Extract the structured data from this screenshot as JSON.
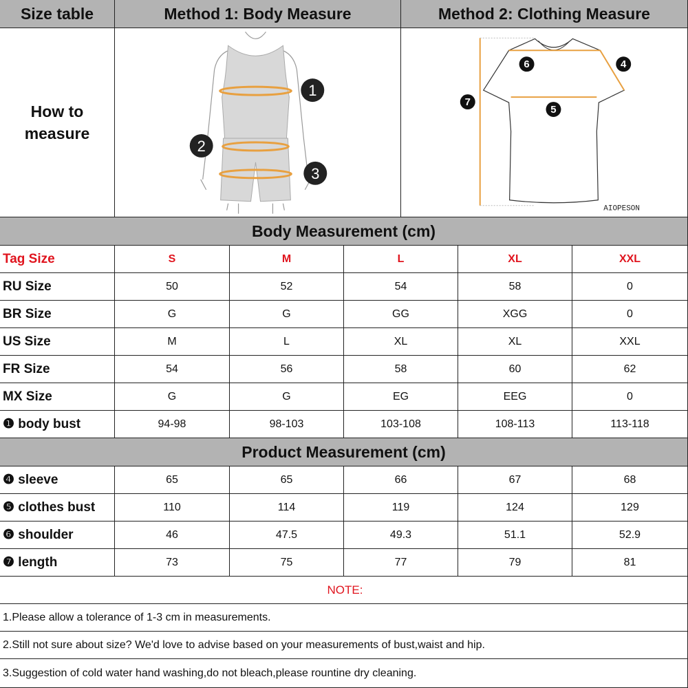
{
  "header": {
    "size_table": "Size table",
    "method1": "Method 1: Body  Measure",
    "method2": "Method 2: Clothing Measure"
  },
  "how_to": "How to measure",
  "body_markers": [
    "1",
    "2",
    "3"
  ],
  "shirt_markers": {
    "shoulder": "6",
    "sleeve": "4",
    "length": "7",
    "bust": "5"
  },
  "brand": "AIOPESON",
  "colors": {
    "header_bg": "#b3b3b3",
    "tag_red": "#e0141e",
    "measure_orange": "#e8a040"
  },
  "body_section": "Body Measurement (cm)",
  "product_section": "Product Measurement (cm)",
  "body_rows": [
    {
      "label": "Tag Size",
      "values": [
        "S",
        "M",
        "L",
        "XL",
        "XXL"
      ],
      "red": true
    },
    {
      "label": "RU Size",
      "values": [
        "50",
        "52",
        "54",
        "58",
        "0"
      ]
    },
    {
      "label": "BR Size",
      "values": [
        "G",
        "G",
        "GG",
        "XGG",
        "0"
      ]
    },
    {
      "label": "US Size",
      "values": [
        "M",
        "L",
        "XL",
        "XL",
        "XXL"
      ]
    },
    {
      "label": "FR Size",
      "values": [
        "54",
        "56",
        "58",
        "60",
        "62"
      ]
    },
    {
      "label": "MX Size",
      "values": [
        "G",
        "G",
        "EG",
        "EEG",
        "0"
      ]
    },
    {
      "label": "❶ body bust",
      "values": [
        "94-98",
        "98-103",
        "103-108",
        "108-113",
        "113-118"
      ]
    }
  ],
  "product_rows": [
    {
      "label": "❹ sleeve",
      "values": [
        "65",
        "65",
        "66",
        "67",
        "68"
      ]
    },
    {
      "label": "❺ clothes bust",
      "values": [
        "110",
        "114",
        "119",
        "124",
        "129"
      ]
    },
    {
      "label": "❻ shoulder",
      "values": [
        "46",
        "47.5",
        "49.3",
        "51.1",
        "52.9"
      ]
    },
    {
      "label": "❼ length",
      "values": [
        "73",
        "75",
        "77",
        "79",
        "81"
      ]
    }
  ],
  "note_title": "NOTE:",
  "notes": [
    "1.Please allow a tolerance of 1-3 cm in measurements.",
    "2.Still not sure about size? We'd love to advise based on your measurements of bust,waist and hip.",
    "3.Suggestion of cold water hand washing,do not bleach,please rountine dry cleaning."
  ]
}
